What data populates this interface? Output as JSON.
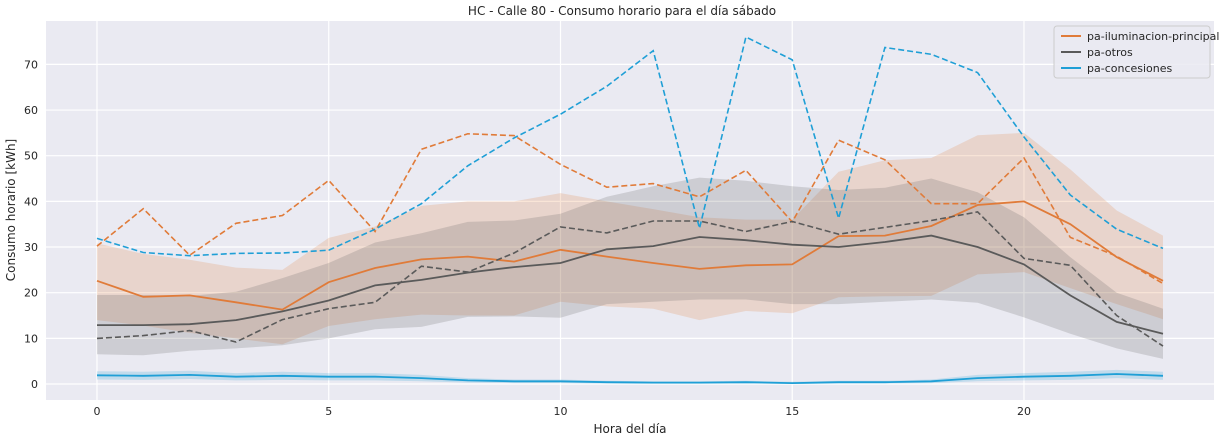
{
  "chart_data": {
    "type": "line",
    "title": "HC - Calle 80 - Consumo horario para el día sábado",
    "xlabel": "Hora del día",
    "ylabel": "Consumo horario [kWh]",
    "xlim": [
      -1.1,
      24.1
    ],
    "ylim": [
      -3.5,
      79.5
    ],
    "xticks": [
      0,
      5,
      10,
      15,
      20
    ],
    "yticks": [
      0,
      10,
      20,
      30,
      40,
      50,
      60,
      70
    ],
    "grid": true,
    "legend_position": "top-right",
    "x": [
      0,
      1,
      2,
      3,
      4,
      5,
      6,
      7,
      8,
      9,
      10,
      11,
      12,
      13,
      14,
      15,
      16,
      17,
      18,
      19,
      20,
      21,
      22,
      23
    ],
    "series": [
      {
        "name": "pa-iluminacion-principal",
        "color": "#E07B39",
        "mean": [
          22.6,
          19.1,
          19.4,
          17.9,
          16.3,
          22.3,
          25.4,
          27.3,
          27.9,
          26.8,
          29.4,
          27.9,
          26.5,
          25.2,
          26.0,
          26.2,
          32.4,
          32.5,
          34.6,
          39.2,
          40.0,
          35.0,
          27.8,
          22.6
        ],
        "ci_low": [
          14.0,
          12.8,
          11.2,
          10.0,
          8.7,
          12.7,
          14.2,
          15.2,
          15.0,
          15.0,
          18.0,
          17.0,
          16.5,
          14.0,
          16.0,
          15.5,
          19.0,
          19.2,
          19.3,
          24.0,
          24.5,
          21.0,
          17.5,
          14.2
        ],
        "ci_high": [
          30.8,
          28.5,
          27.2,
          25.5,
          25.0,
          32.0,
          34.5,
          39.0,
          40.0,
          40.0,
          41.8,
          40.0,
          38.3,
          36.5,
          36.0,
          36.0,
          46.5,
          49.0,
          49.5,
          54.5,
          55.0,
          47.0,
          38.0,
          32.5
        ],
        "dashed": [
          30.2,
          38.4,
          28.2,
          35.2,
          36.9,
          44.6,
          33.4,
          51.4,
          54.8,
          54.4,
          48.1,
          43.1,
          43.9,
          41.0,
          46.8,
          35.5,
          53.4,
          49.1,
          39.5,
          39.5,
          49.5,
          32.1,
          28.0,
          22.0
        ]
      },
      {
        "name": "pa-otros",
        "color": "#5A5A5A",
        "mean": [
          12.9,
          12.9,
          13.1,
          14.0,
          15.9,
          18.3,
          21.6,
          22.8,
          24.4,
          25.6,
          26.5,
          29.5,
          30.2,
          32.2,
          31.5,
          30.5,
          30.0,
          31.1,
          32.5,
          30.0,
          26.2,
          19.4,
          13.6,
          11.0
        ],
        "ci_low": [
          6.5,
          6.3,
          7.3,
          7.8,
          8.5,
          10.0,
          12.0,
          12.5,
          14.7,
          14.8,
          14.5,
          17.5,
          18.0,
          18.5,
          18.5,
          17.5,
          17.5,
          18.0,
          18.5,
          17.8,
          14.6,
          11.0,
          7.8,
          5.5
        ],
        "ci_high": [
          19.5,
          19.5,
          19.3,
          20.2,
          23.2,
          26.5,
          31.0,
          33.0,
          35.5,
          35.8,
          37.3,
          41.0,
          43.3,
          45.2,
          44.5,
          43.3,
          42.5,
          43.0,
          45.0,
          42.0,
          36.5,
          27.8,
          20.0,
          16.5
        ],
        "dashed": [
          10.0,
          10.6,
          11.7,
          9.2,
          14.1,
          16.5,
          17.9,
          25.8,
          24.5,
          28.7,
          34.4,
          33.1,
          35.7,
          35.7,
          33.4,
          35.6,
          32.8,
          34.3,
          35.8,
          37.7,
          27.5,
          26.0,
          15.0,
          8.3
        ]
      },
      {
        "name": "pa-concesiones",
        "color": "#1F9FD6",
        "mean": [
          1.9,
          1.8,
          2.0,
          1.6,
          1.8,
          1.6,
          1.6,
          1.3,
          0.8,
          0.6,
          0.6,
          0.4,
          0.3,
          0.3,
          0.4,
          0.2,
          0.4,
          0.4,
          0.6,
          1.3,
          1.6,
          1.8,
          2.2,
          1.8
        ],
        "ci_low": [
          1.0,
          0.9,
          1.1,
          0.8,
          0.9,
          0.8,
          0.8,
          0.6,
          0.3,
          0.2,
          0.2,
          0.1,
          0.05,
          0.05,
          0.1,
          0.0,
          0.1,
          0.1,
          0.2,
          0.6,
          0.8,
          0.9,
          1.3,
          0.9
        ],
        "ci_high": [
          2.8,
          2.7,
          2.9,
          2.4,
          2.7,
          2.4,
          2.4,
          2.0,
          1.3,
          1.0,
          1.0,
          0.7,
          0.6,
          0.6,
          0.7,
          0.5,
          0.7,
          0.7,
          1.0,
          2.0,
          2.4,
          2.7,
          3.1,
          2.7
        ],
        "dashed": [
          31.9,
          28.8,
          28.1,
          28.6,
          28.7,
          29.3,
          33.9,
          39.5,
          47.8,
          53.9,
          59.1,
          65.2,
          73.0,
          34.1,
          76.0,
          71.0,
          36.3,
          73.7,
          72.2,
          68.2,
          54.1,
          41.4,
          33.9,
          29.7
        ]
      }
    ]
  }
}
